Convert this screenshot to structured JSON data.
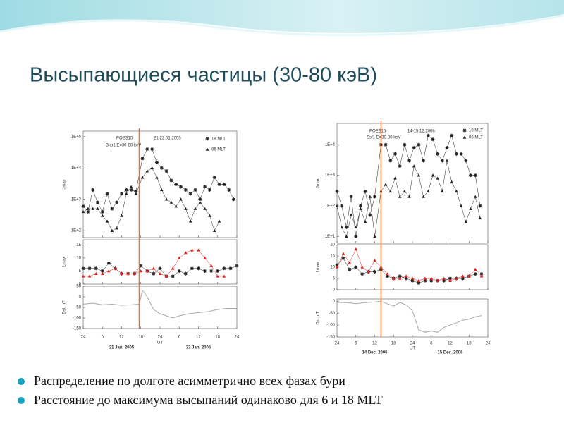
{
  "title": "Высыпающиеся частицы (30-80 кэВ)",
  "bullets": [
    "Распределение по долготе асимметрично всех фазах бури",
    "Расстояние до максимума высыпаний одинаково для 6 и 18 MLT"
  ],
  "figures": [
    {
      "header": [
        "POES15",
        "21-22.01.2005",
        "Bkp1 E=30-80 keV"
      ],
      "xlim": [
        0,
        48
      ],
      "xticks": [
        {
          "value": 0,
          "label": "24"
        },
        {
          "value": 6,
          "label": "6"
        },
        {
          "value": 12,
          "label": "12"
        },
        {
          "value": 18,
          "label": "18"
        },
        {
          "value": 24,
          "label": "24"
        },
        {
          "value": 30,
          "label": "6"
        },
        {
          "value": 36,
          "label": "12"
        },
        {
          "value": 42,
          "label": "18"
        },
        {
          "value": 48,
          "label": "24"
        }
      ],
      "xlabel": "UT",
      "dates": [
        "21 Jan. 2005",
        "22 Jan. 2005"
      ],
      "marker_line": {
        "x": 17.5,
        "color": "#e8703a"
      },
      "panels": [
        {
          "type": "line",
          "ylabel": "Jmax",
          "log": true,
          "ylim": [
            60,
            150000
          ],
          "yticks": [
            {
              "value": 100,
              "label": "1E+2"
            },
            {
              "value": 1000,
              "label": "1E+3"
            },
            {
              "value": 10000,
              "label": "1E+4"
            },
            {
              "value": 100000,
              "label": "1E+5"
            }
          ],
          "series": [
            {
              "name": "18 MLT",
              "color": "#222222",
              "marker": "star",
              "x": [
                0,
                1.5,
                3,
                4.5,
                6,
                7.5,
                9,
                10.5,
                12,
                13.5,
                15,
                16.5,
                18.5,
                20,
                21.5,
                23,
                24.5,
                26,
                27.5,
                29,
                30.5,
                32,
                33.5,
                35,
                36.5,
                38,
                39.5,
                41,
                42.5,
                44,
                45.5,
                47
              ],
              "values": [
                600,
                400,
                2000,
                800,
                400,
                1500,
                500,
                800,
                1500,
                2000,
                2000,
                1800,
                20000,
                40000,
                40000,
                15000,
                10000,
                8000,
                4000,
                3000,
                2500,
                2000,
                1500,
                2000,
                1000,
                2500,
                2000,
                5000,
                3000,
                3000,
                2000,
                1000
              ]
            },
            {
              "name": "06 MLT",
              "color": "#222222",
              "marker": "triangle",
              "x": [
                0,
                1.5,
                3,
                4.5,
                6,
                7.5,
                9,
                10.5,
                12,
                13.5,
                15,
                16.5,
                18.5,
                20,
                21.5,
                23,
                24.5,
                26,
                27.5,
                29,
                30.5,
                32,
                33.5,
                35,
                36.5,
                38,
                39.5,
                41,
                42.5
              ],
              "values": [
                400,
                500,
                500,
                500,
                300,
                200,
                100,
                120,
                300,
                1500,
                2500,
                1500,
                5000,
                8000,
                10000,
                5000,
                2000,
                1000,
                800,
                600,
                1000,
                500,
                200,
                500,
                800,
                500,
                300,
                100,
                200
              ]
            }
          ]
        },
        {
          "type": "line",
          "ylabel": "Lmax",
          "ylim": [
            0,
            17
          ],
          "yticks": [
            0,
            5,
            10,
            15
          ],
          "series": [
            {
              "color": "#222222",
              "marker": "star",
              "x": [
                0,
                2,
                4,
                6,
                8,
                10,
                12,
                14,
                16,
                18,
                20,
                22,
                24,
                26,
                28,
                30,
                32,
                34,
                36,
                38,
                40,
                42,
                44,
                46,
                48
              ],
              "values": [
                6,
                6,
                6,
                5,
                8,
                6,
                4,
                4,
                4,
                7,
                5,
                4,
                6,
                3,
                3,
                5,
                4,
                6,
                6,
                5,
                5,
                5,
                6,
                6,
                7
              ]
            },
            {
              "color": "#e02020",
              "marker": "triangle",
              "x": [
                0,
                2,
                4,
                6,
                8,
                10,
                12,
                14,
                16,
                18,
                20,
                22,
                24,
                26,
                28,
                30,
                32,
                34,
                36,
                38,
                40,
                42,
                44
              ],
              "values": [
                3,
                3,
                4,
                4,
                5,
                6,
                4,
                4,
                4,
                5,
                5,
                6,
                4,
                3,
                6,
                10,
                12,
                13,
                13,
                10,
                7,
                3,
                3
              ]
            }
          ]
        },
        {
          "type": "line",
          "ylabel": "Dst, nT",
          "ylim": [
            -150,
            50
          ],
          "yticks": [
            50,
            0,
            -50,
            -100,
            -150
          ],
          "series": [
            {
              "color": "#aaaaaa",
              "x": [
                0,
                3,
                6,
                9,
                12,
                15,
                17.5,
                18.5,
                20,
                22,
                24,
                26,
                28,
                30,
                33,
                36,
                39,
                42,
                45,
                48
              ],
              "values": [
                -35,
                -30,
                -38,
                -35,
                -40,
                -38,
                -35,
                30,
                0,
                -60,
                -80,
                -90,
                -100,
                -90,
                -80,
                -75,
                -70,
                -60,
                -55,
                -55
              ]
            }
          ]
        }
      ]
    },
    {
      "header": [
        "POES15",
        "14-15.12.2006",
        "Ssf1 E=30-80 keV"
      ],
      "xlim": [
        0,
        48
      ],
      "xticks": [
        {
          "value": 0,
          "label": "24"
        },
        {
          "value": 6,
          "label": "6"
        },
        {
          "value": 12,
          "label": "12"
        },
        {
          "value": 18,
          "label": "18"
        },
        {
          "value": 24,
          "label": "24"
        },
        {
          "value": 30,
          "label": "6"
        },
        {
          "value": 36,
          "label": "12"
        },
        {
          "value": 42,
          "label": "18"
        },
        {
          "value": 48,
          "label": "24"
        }
      ],
      "xlabel": "UT",
      "dates": [
        "14 Dec. 2006",
        "15 Dec. 2006"
      ],
      "marker_line": {
        "x": 14,
        "color": "#e8703a"
      },
      "panels": [
        {
          "type": "line",
          "ylabel": "Jmax",
          "log": true,
          "ylim": [
            6,
            50000
          ],
          "yticks": [
            {
              "value": 10,
              "label": "1E+1"
            },
            {
              "value": 100,
              "label": "1E+2"
            },
            {
              "value": 1000,
              "label": "1E+3"
            },
            {
              "value": 10000,
              "label": "1E+4"
            }
          ],
          "series": [
            {
              "name": "18 MLT",
              "color": "#222222",
              "marker": "star",
              "x": [
                0,
                1.5,
                3,
                4.5,
                6,
                7.5,
                9,
                10.5,
                12,
                14,
                15.5,
                17,
                18.5,
                20,
                21.5,
                23,
                24.5,
                26,
                27.5,
                29,
                30.5,
                32,
                33.5,
                35,
                36.5,
                38,
                39.5,
                41,
                42.5,
                44,
                45.5
              ],
              "values": [
                300,
                100,
                20,
                200,
                10,
                100,
                300,
                50,
                200,
                10000,
                10000,
                3000,
                5000,
                2000,
                10000,
                3000,
                8000,
                10000,
                3000,
                20000,
                15000,
                5000,
                3000,
                8000,
                20000,
                5000,
                5000,
                3000,
                1000,
                1000,
                100
              ]
            },
            {
              "name": "06 MLT",
              "color": "#222222",
              "marker": "triangle",
              "x": [
                0,
                1.5,
                3,
                4.5,
                6,
                7.5,
                9,
                10.5,
                12,
                14,
                15.5,
                17,
                18.5,
                20,
                21.5,
                23,
                24.5,
                26,
                27.5,
                29,
                30.5,
                32,
                33.5,
                35,
                36.5,
                38,
                39.5,
                41,
                42.5,
                44,
                45.5
              ],
              "values": [
                100,
                20,
                10,
                50,
                20,
                80,
                30,
                200,
                10,
                300,
                500,
                300,
                800,
                200,
                300,
                200,
                2000,
                1000,
                200,
                300,
                1000,
                800,
                300,
                3000,
                600,
                300,
                100,
                30,
                80,
                200,
                40
              ]
            }
          ]
        },
        {
          "type": "line",
          "ylabel": "Lmax",
          "ylim": [
            0,
            20
          ],
          "yticks": [
            0,
            5,
            10,
            15,
            20
          ],
          "series": [
            {
              "color": "#222222",
              "marker": "star",
              "x": [
                0,
                2,
                4,
                6,
                8,
                10,
                12,
                14,
                16,
                18,
                20,
                22,
                24,
                26,
                28,
                30,
                32,
                34,
                36,
                38,
                40,
                42,
                44,
                46
              ],
              "values": [
                11,
                14,
                9,
                10,
                7,
                8,
                8,
                9,
                6,
                5,
                6,
                5,
                4,
                3,
                4,
                4,
                4,
                4,
                5,
                5,
                5,
                6,
                7,
                7
              ]
            },
            {
              "color": "#e02020",
              "marker": "triangle",
              "x": [
                0,
                2,
                4,
                6,
                8,
                10,
                12,
                14,
                16,
                18,
                20,
                22,
                24,
                26,
                28,
                30,
                32,
                34,
                36,
                38,
                40,
                42,
                44,
                46
              ],
              "values": [
                10,
                16,
                12,
                18,
                10,
                8,
                13,
                10,
                7,
                5,
                5,
                6,
                5,
                4,
                5,
                5,
                4,
                5,
                4,
                5,
                6,
                6,
                9,
                6
              ]
            }
          ]
        },
        {
          "type": "line",
          "ylabel": "Dst, nT",
          "ylim": [
            -150,
            10
          ],
          "yticks": [
            0,
            -50,
            -100,
            -150
          ],
          "series": [
            {
              "color": "#aaaaaa",
              "x": [
                0,
                3,
                6,
                9,
                12,
                14,
                16,
                18,
                20,
                22,
                24,
                26,
                28,
                30,
                32,
                34,
                36,
                38,
                40,
                42,
                44,
                46
              ],
              "values": [
                -5,
                -5,
                -10,
                -5,
                -3,
                0,
                -10,
                -20,
                -5,
                -15,
                -40,
                -120,
                -130,
                -125,
                -130,
                -110,
                -100,
                -90,
                -80,
                -75,
                -65,
                -60
              ]
            }
          ]
        }
      ]
    }
  ]
}
